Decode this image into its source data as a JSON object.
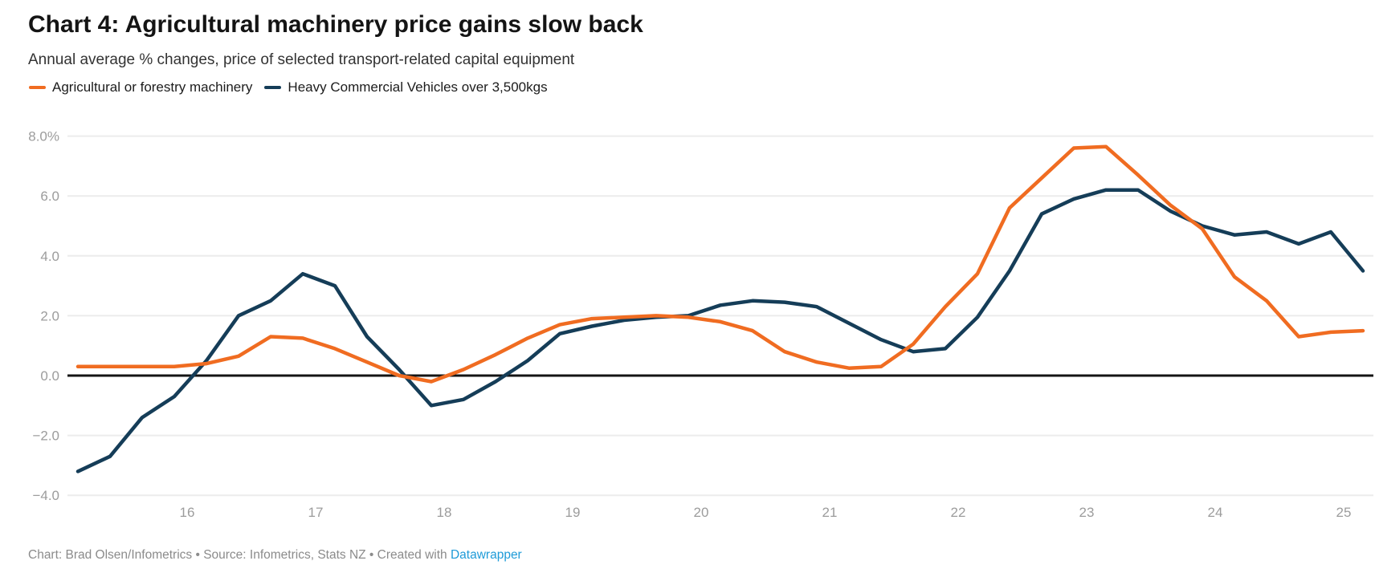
{
  "page": {
    "title": "Chart 4: Agricultural machinery price gains slow back",
    "subtitle": "Annual average % changes, price of selected transport-related capital equipment"
  },
  "legend": {
    "items": [
      {
        "label": "Agricultural or forestry machinery",
        "color": "#F06C21"
      },
      {
        "label": "Heavy Commercial Vehicles over 3,500kgs",
        "color": "#153D58"
      }
    ]
  },
  "footer": {
    "credit_prefix": "Chart: Brad Olsen/Infometrics • Source: Infometrics, Stats NZ • Created with ",
    "link_label": "Datawrapper",
    "link_color": "#1E9BD8"
  },
  "chart_data": {
    "type": "line",
    "title": "Chart 4: Agricultural machinery price gains slow back",
    "subtitle": "Annual average % changes, price of selected transport-related capital equipment",
    "x_start": 15.15,
    "x_step": 0.25,
    "x_tick_values": [
      16,
      17,
      18,
      19,
      20,
      21,
      22,
      23,
      24,
      25
    ],
    "x_tick_labels": [
      "16",
      "17",
      "18",
      "19",
      "20",
      "21",
      "22",
      "23",
      "24",
      "25"
    ],
    "ylim": [
      -4,
      8
    ],
    "y_ticks": [
      {
        "value": 8,
        "label": "8.0%"
      },
      {
        "value": 6,
        "label": "6.0"
      },
      {
        "value": 4,
        "label": "4.0"
      },
      {
        "value": 2,
        "label": "2.0"
      },
      {
        "value": 0,
        "label": "0.0"
      },
      {
        "value": -2,
        "label": "−2.0"
      },
      {
        "value": -4,
        "label": "−4.0"
      }
    ],
    "grid": "horizontal",
    "zero_baseline": true,
    "legend_position": "top-left",
    "series": [
      {
        "name": "Agricultural or forestry machinery",
        "color": "#F06C21",
        "values": [
          0.3,
          0.3,
          0.3,
          0.3,
          0.4,
          0.65,
          1.3,
          1.25,
          0.9,
          0.45,
          0.0,
          -0.2,
          0.2,
          0.7,
          1.25,
          1.7,
          1.9,
          1.95,
          2.0,
          1.95,
          1.8,
          1.5,
          0.8,
          0.45,
          0.25,
          0.3,
          1.05,
          2.3,
          3.4,
          5.6,
          6.6,
          7.6,
          7.65,
          6.7,
          5.7,
          4.9,
          3.3,
          2.5,
          1.3,
          1.45,
          1.5
        ]
      },
      {
        "name": "Heavy Commercial Vehicles over 3,500kgs",
        "color": "#153D58",
        "values": [
          -3.2,
          -2.7,
          -1.4,
          -0.7,
          0.5,
          2.0,
          2.5,
          3.4,
          3.0,
          1.3,
          0.2,
          -1.0,
          -0.8,
          -0.2,
          0.5,
          1.4,
          1.65,
          1.85,
          1.95,
          2.0,
          2.35,
          2.5,
          2.45,
          2.3,
          1.75,
          1.2,
          0.8,
          0.9,
          1.95,
          3.5,
          5.4,
          5.9,
          6.2,
          6.2,
          5.5,
          5.0,
          4.7,
          4.8,
          4.4,
          4.8,
          3.5
        ]
      }
    ]
  }
}
